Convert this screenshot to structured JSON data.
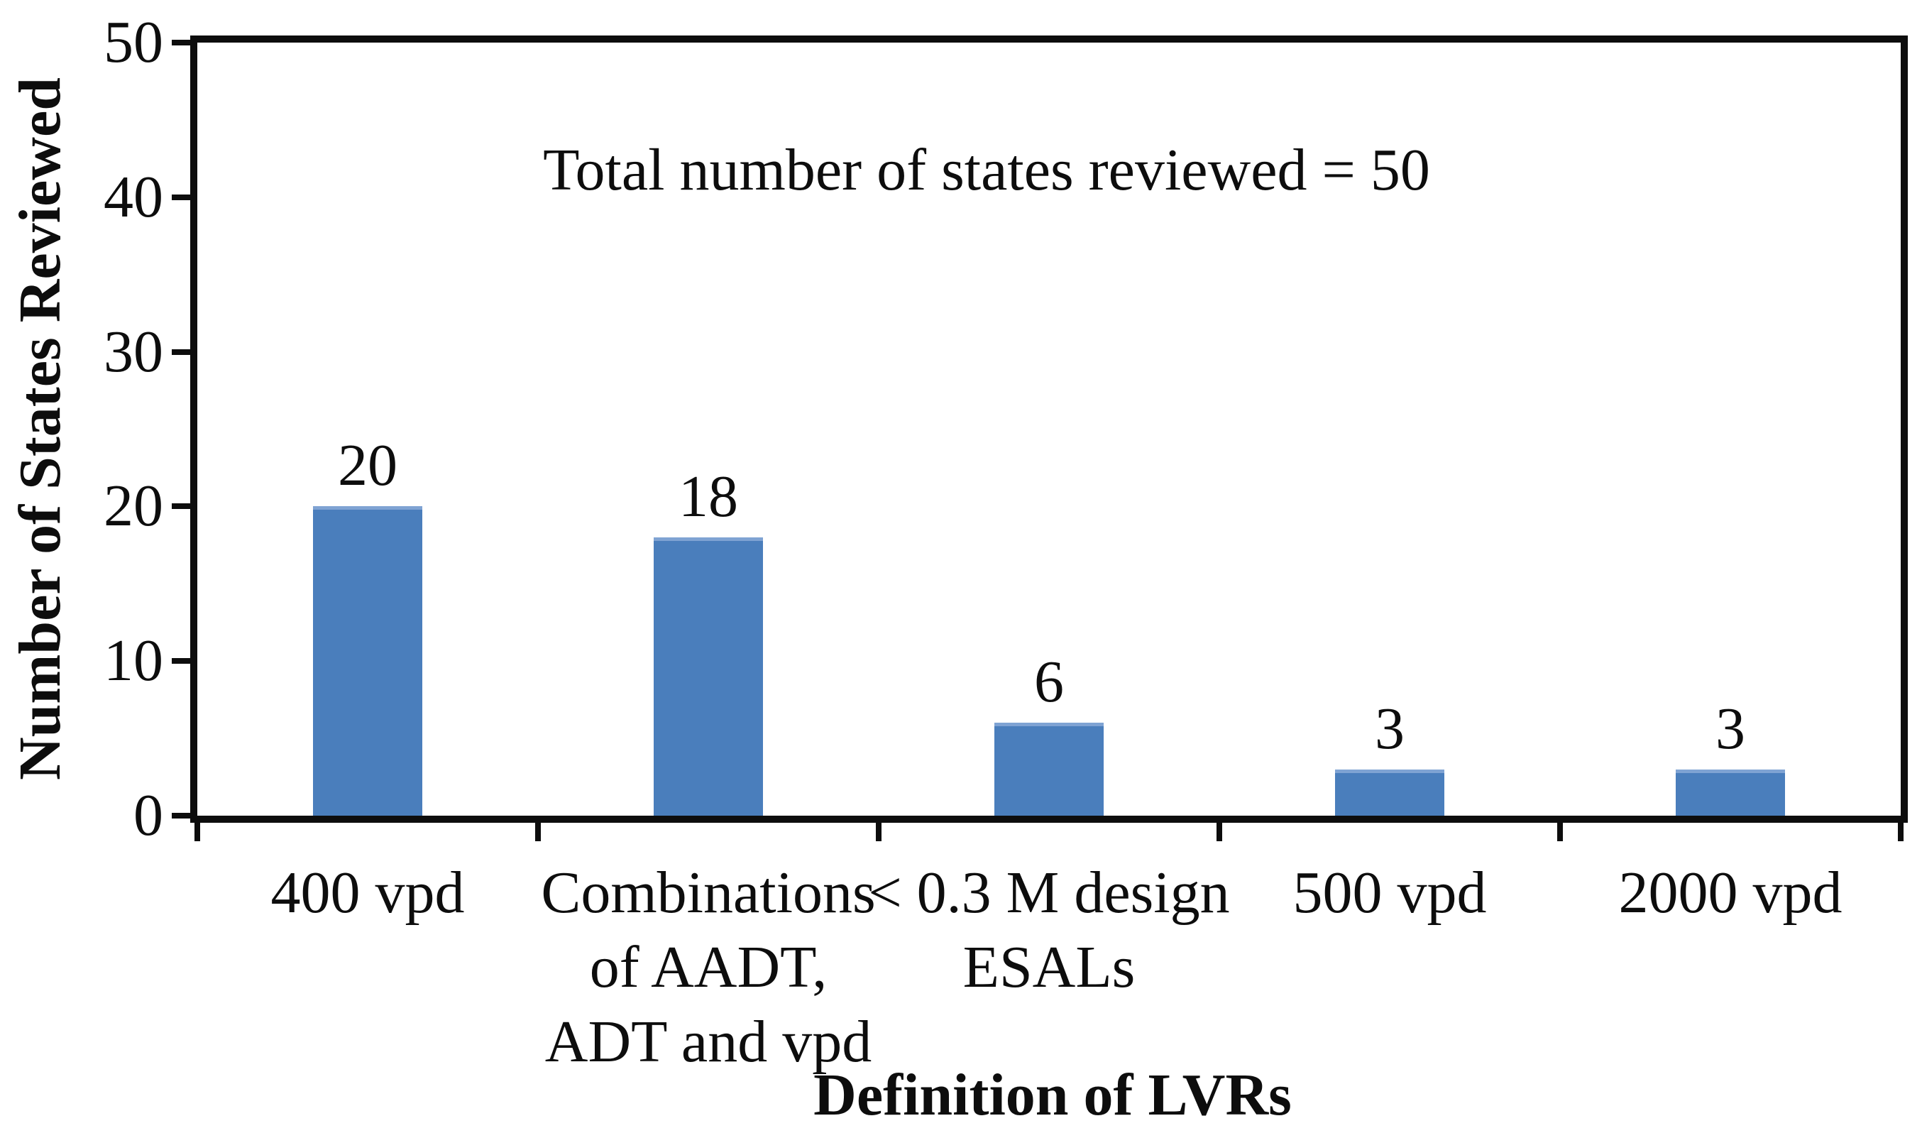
{
  "figure": {
    "background": "#ffffff",
    "axis_color": "#0d0d0d",
    "bar_color": "#4a7ebc",
    "bar_top_highlight": "#7fa3d3",
    "text_color": "#0d0d0d"
  },
  "chart_data": {
    "type": "bar",
    "title": "",
    "annotation": "Total number of states reviewed = 50",
    "xlabel": "Definition of LVRs",
    "ylabel": "Number of States Reviewed",
    "categories": [
      "400 vpd",
      "Combinations\nof AADT,\nADT and vpd",
      "< 0.3 M design\nESALs",
      "500 vpd",
      "2000 vpd"
    ],
    "values": [
      20,
      18,
      6,
      3,
      3
    ],
    "data_labels": [
      "20",
      "18",
      "6",
      "3",
      "3"
    ],
    "y_ticks": [
      0,
      10,
      20,
      30,
      40,
      50
    ],
    "y_tick_labels": [
      "0",
      "10",
      "20",
      "30",
      "40",
      "50"
    ],
    "ylim": [
      0,
      50
    ],
    "grid": false,
    "legend": null,
    "total_states": 50
  }
}
